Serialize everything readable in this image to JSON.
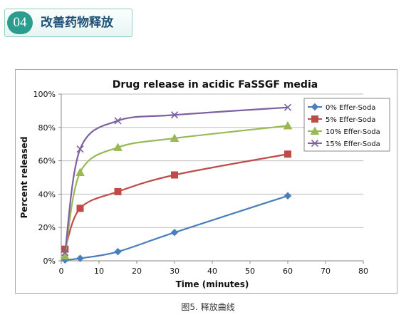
{
  "header": {
    "number": "04",
    "title": "改善药物释放"
  },
  "caption": "图5. 释放曲线",
  "chart_data": {
    "type": "line",
    "title": "Drug release in acidic FaSSGF media",
    "xlabel": "Time (minutes)",
    "ylabel": "Percent released",
    "xlim": [
      0,
      80
    ],
    "ylim": [
      0,
      100
    ],
    "x_ticks": [
      0,
      10,
      20,
      30,
      40,
      50,
      60,
      70,
      80
    ],
    "y_ticks": [
      "0%",
      "20%",
      "40%",
      "60%",
      "80%",
      "100%"
    ],
    "y_tick_values": [
      0,
      20,
      40,
      60,
      80,
      100
    ],
    "grid": "horizontal",
    "legend_position": "right",
    "series": [
      {
        "name": "0% Effer-Soda",
        "color": "#4a7ebb",
        "marker": "diamond",
        "x": [
          1,
          5,
          15,
          30,
          60
        ],
        "values": [
          0.5,
          1.5,
          5.5,
          17,
          39
        ]
      },
      {
        "name": "5% Effer-Soda",
        "color": "#be4b48",
        "marker": "square",
        "x": [
          1,
          5,
          15,
          30,
          60
        ],
        "values": [
          7,
          31.5,
          41.5,
          51.5,
          64
        ]
      },
      {
        "name": "10% Effer-Soda",
        "color": "#98b954",
        "marker": "triangle",
        "x": [
          1,
          5,
          15,
          30,
          60
        ],
        "values": [
          3,
          53,
          68,
          73.5,
          81
        ]
      },
      {
        "name": "15% Effer-Soda",
        "color": "#7d60a0",
        "marker": "x",
        "x": [
          1,
          5,
          15,
          30,
          60
        ],
        "values": [
          5,
          67,
          84,
          87.5,
          92
        ]
      }
    ]
  }
}
